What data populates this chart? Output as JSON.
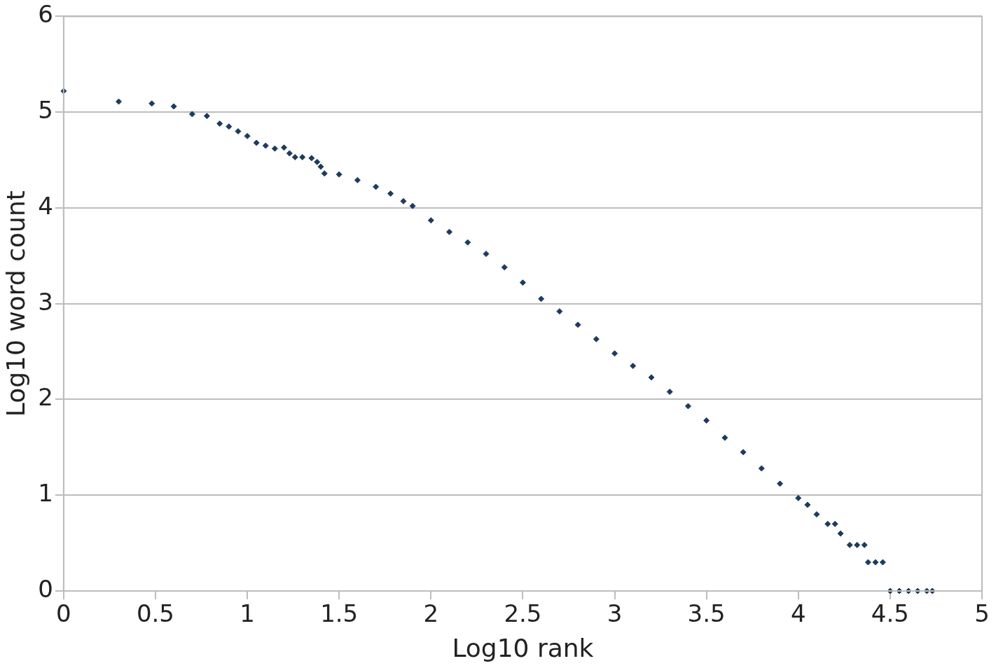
{
  "chart_data": {
    "type": "scatter",
    "xlabel": "Log10 rank",
    "ylabel": "Log10 word count",
    "xlim": [
      0,
      5
    ],
    "ylim": [
      0,
      6
    ],
    "xticks": [
      0,
      0.5,
      1,
      1.5,
      2,
      2.5,
      3,
      3.5,
      4,
      4.5,
      5
    ],
    "yticks": [
      0,
      1,
      2,
      3,
      4,
      5,
      6
    ],
    "grid": "y",
    "legend": false,
    "marker": "diamond",
    "series": [
      {
        "color": "#1f3b5c",
        "x": [
          0,
          0.3,
          0.48,
          0.6,
          0.7,
          0.78,
          0.85,
          0.9,
          0.95,
          1.0,
          1.05,
          1.1,
          1.15,
          1.2,
          1.23,
          1.26,
          1.3,
          1.35,
          1.38,
          1.4,
          1.42,
          1.5,
          1.6,
          1.7,
          1.78,
          1.85,
          1.9,
          2.0,
          2.1,
          2.2,
          2.3,
          2.4,
          2.5,
          2.6,
          2.7,
          2.8,
          2.9,
          3.0,
          3.1,
          3.2,
          3.3,
          3.4,
          3.5,
          3.6,
          3.7,
          3.8,
          3.9,
          4.0,
          4.05,
          4.1,
          4.16,
          4.2,
          4.23,
          4.28,
          4.32,
          4.36,
          4.38,
          4.42,
          4.46,
          4.5,
          4.55,
          4.6,
          4.65,
          4.7,
          4.73
        ],
        "values": [
          5.22,
          5.11,
          5.09,
          5.06,
          4.98,
          4.96,
          4.88,
          4.85,
          4.8,
          4.75,
          4.68,
          4.65,
          4.62,
          4.63,
          4.57,
          4.53,
          4.53,
          4.52,
          4.48,
          4.43,
          4.36,
          4.35,
          4.29,
          4.22,
          4.15,
          4.07,
          4.02,
          3.87,
          3.75,
          3.64,
          3.52,
          3.38,
          3.22,
          3.05,
          2.92,
          2.78,
          2.63,
          2.48,
          2.35,
          2.23,
          2.08,
          1.93,
          1.78,
          1.6,
          1.45,
          1.28,
          1.12,
          0.97,
          0.9,
          0.8,
          0.7,
          0.7,
          0.6,
          0.48,
          0.48,
          0.48,
          0.3,
          0.3,
          0.3,
          0,
          0,
          0,
          0,
          0,
          0
        ]
      }
    ]
  }
}
